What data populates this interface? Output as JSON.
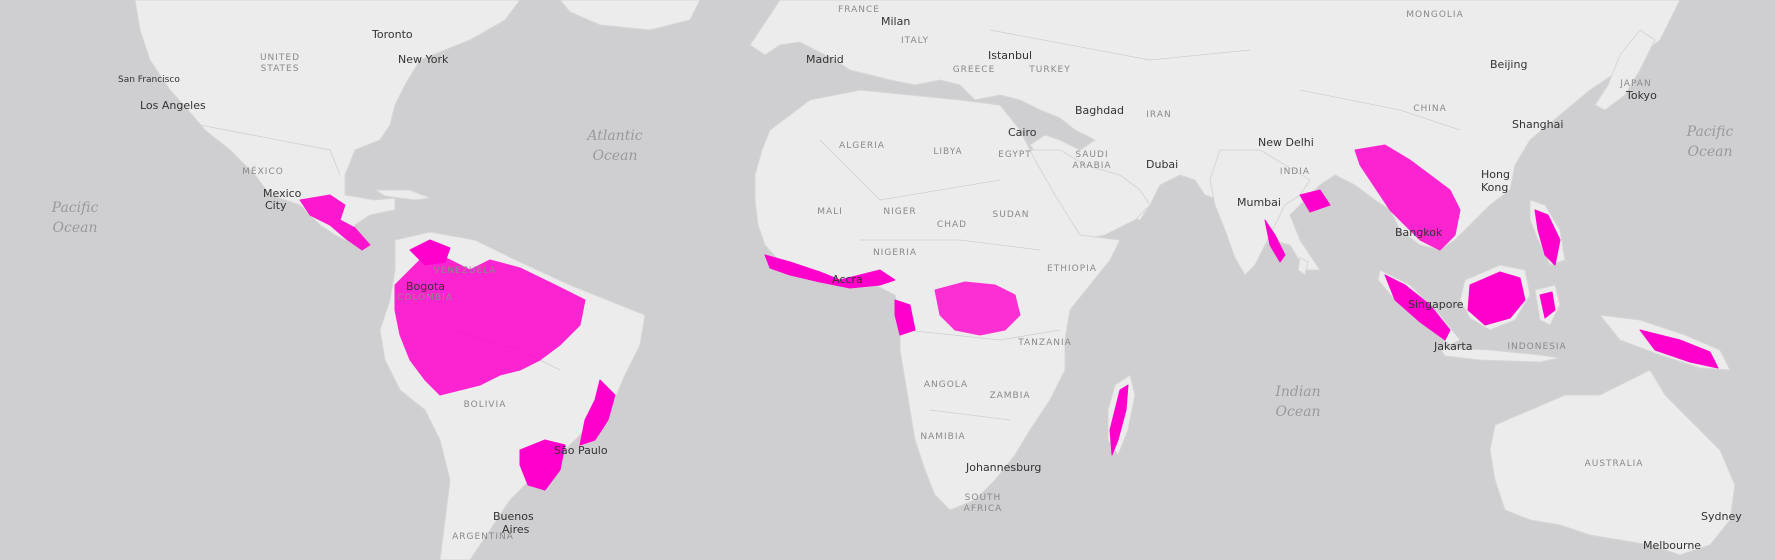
{
  "colors": {
    "ocean": "#cfcfd1",
    "land": "#ececec",
    "border": "#c8c8c8",
    "forest_loss": "#ff00cc"
  },
  "oceans": {
    "pacific_west": [
      "Pacific",
      "Ocean"
    ],
    "atlantic": [
      "Atlantic",
      "Ocean"
    ],
    "indian": [
      "Indian",
      "Ocean"
    ],
    "pacific_east": [
      "Pacific",
      "Ocean"
    ]
  },
  "countries": {
    "france": "FRANCE",
    "italy": "ITALY",
    "greece": "GREECE",
    "turkey": "TURKEY",
    "mongolia": "MONGOLIA",
    "united_states": [
      "UNITED",
      "STATES"
    ],
    "mexico": "MÉXICO",
    "algeria": "ALGERIA",
    "libya": "LIBYA",
    "egypt": "EGYPT",
    "iran": "IRAN",
    "saudi_arabia": [
      "SAUDI",
      "ARABIA"
    ],
    "china": "CHINA",
    "india": "INDIA",
    "japan": "JAPAN",
    "mali": "MALI",
    "niger": "NIGER",
    "chad": "CHAD",
    "sudan": "SUDAN",
    "nigeria": "NIGERIA",
    "ethiopia": "ETHIOPIA",
    "venezuela": "VENEZUELA",
    "colombia": "COLOMBIA",
    "tanzania": "TANZANIA",
    "angola": "ANGOLA",
    "zambia": "ZAMBIA",
    "namibia": "NAMIBIA",
    "south_africa": [
      "SOUTH",
      "AFRICA"
    ],
    "bolivia": "BOLIVIA",
    "argentina": "ARGENTINA",
    "indonesia": "INDONESIA",
    "australia": "AUSTRALIA"
  },
  "cities": {
    "toronto": "Toronto",
    "new_york": "New York",
    "san_francisco": "San Francisco",
    "los_angeles": "Los Angeles",
    "mexico_city": [
      "Mexico",
      "City"
    ],
    "milan": "Milan",
    "madrid": "Madrid",
    "istanbul": "Istanbul",
    "baghdad": "Baghdad",
    "cairo": "Cairo",
    "dubai": "Dubai",
    "beijing": "Beijing",
    "tokyo": "Tokyo",
    "shanghai": "Shanghai",
    "new_delhi": "New Delhi",
    "hong_kong": [
      "Hong",
      "Kong"
    ],
    "mumbai": "Mumbai",
    "bangkok": "Bangkok",
    "bogota": "Bogota",
    "accra": "Accra",
    "singapore": "Singapore",
    "jakarta": "Jakarta",
    "sao_paulo": "São Paulo",
    "johannesburg": "Johannesburg",
    "buenos_aires": [
      "Buenos",
      "Aires"
    ],
    "sydney": "Sydney",
    "melbourne": "Melbourne"
  }
}
